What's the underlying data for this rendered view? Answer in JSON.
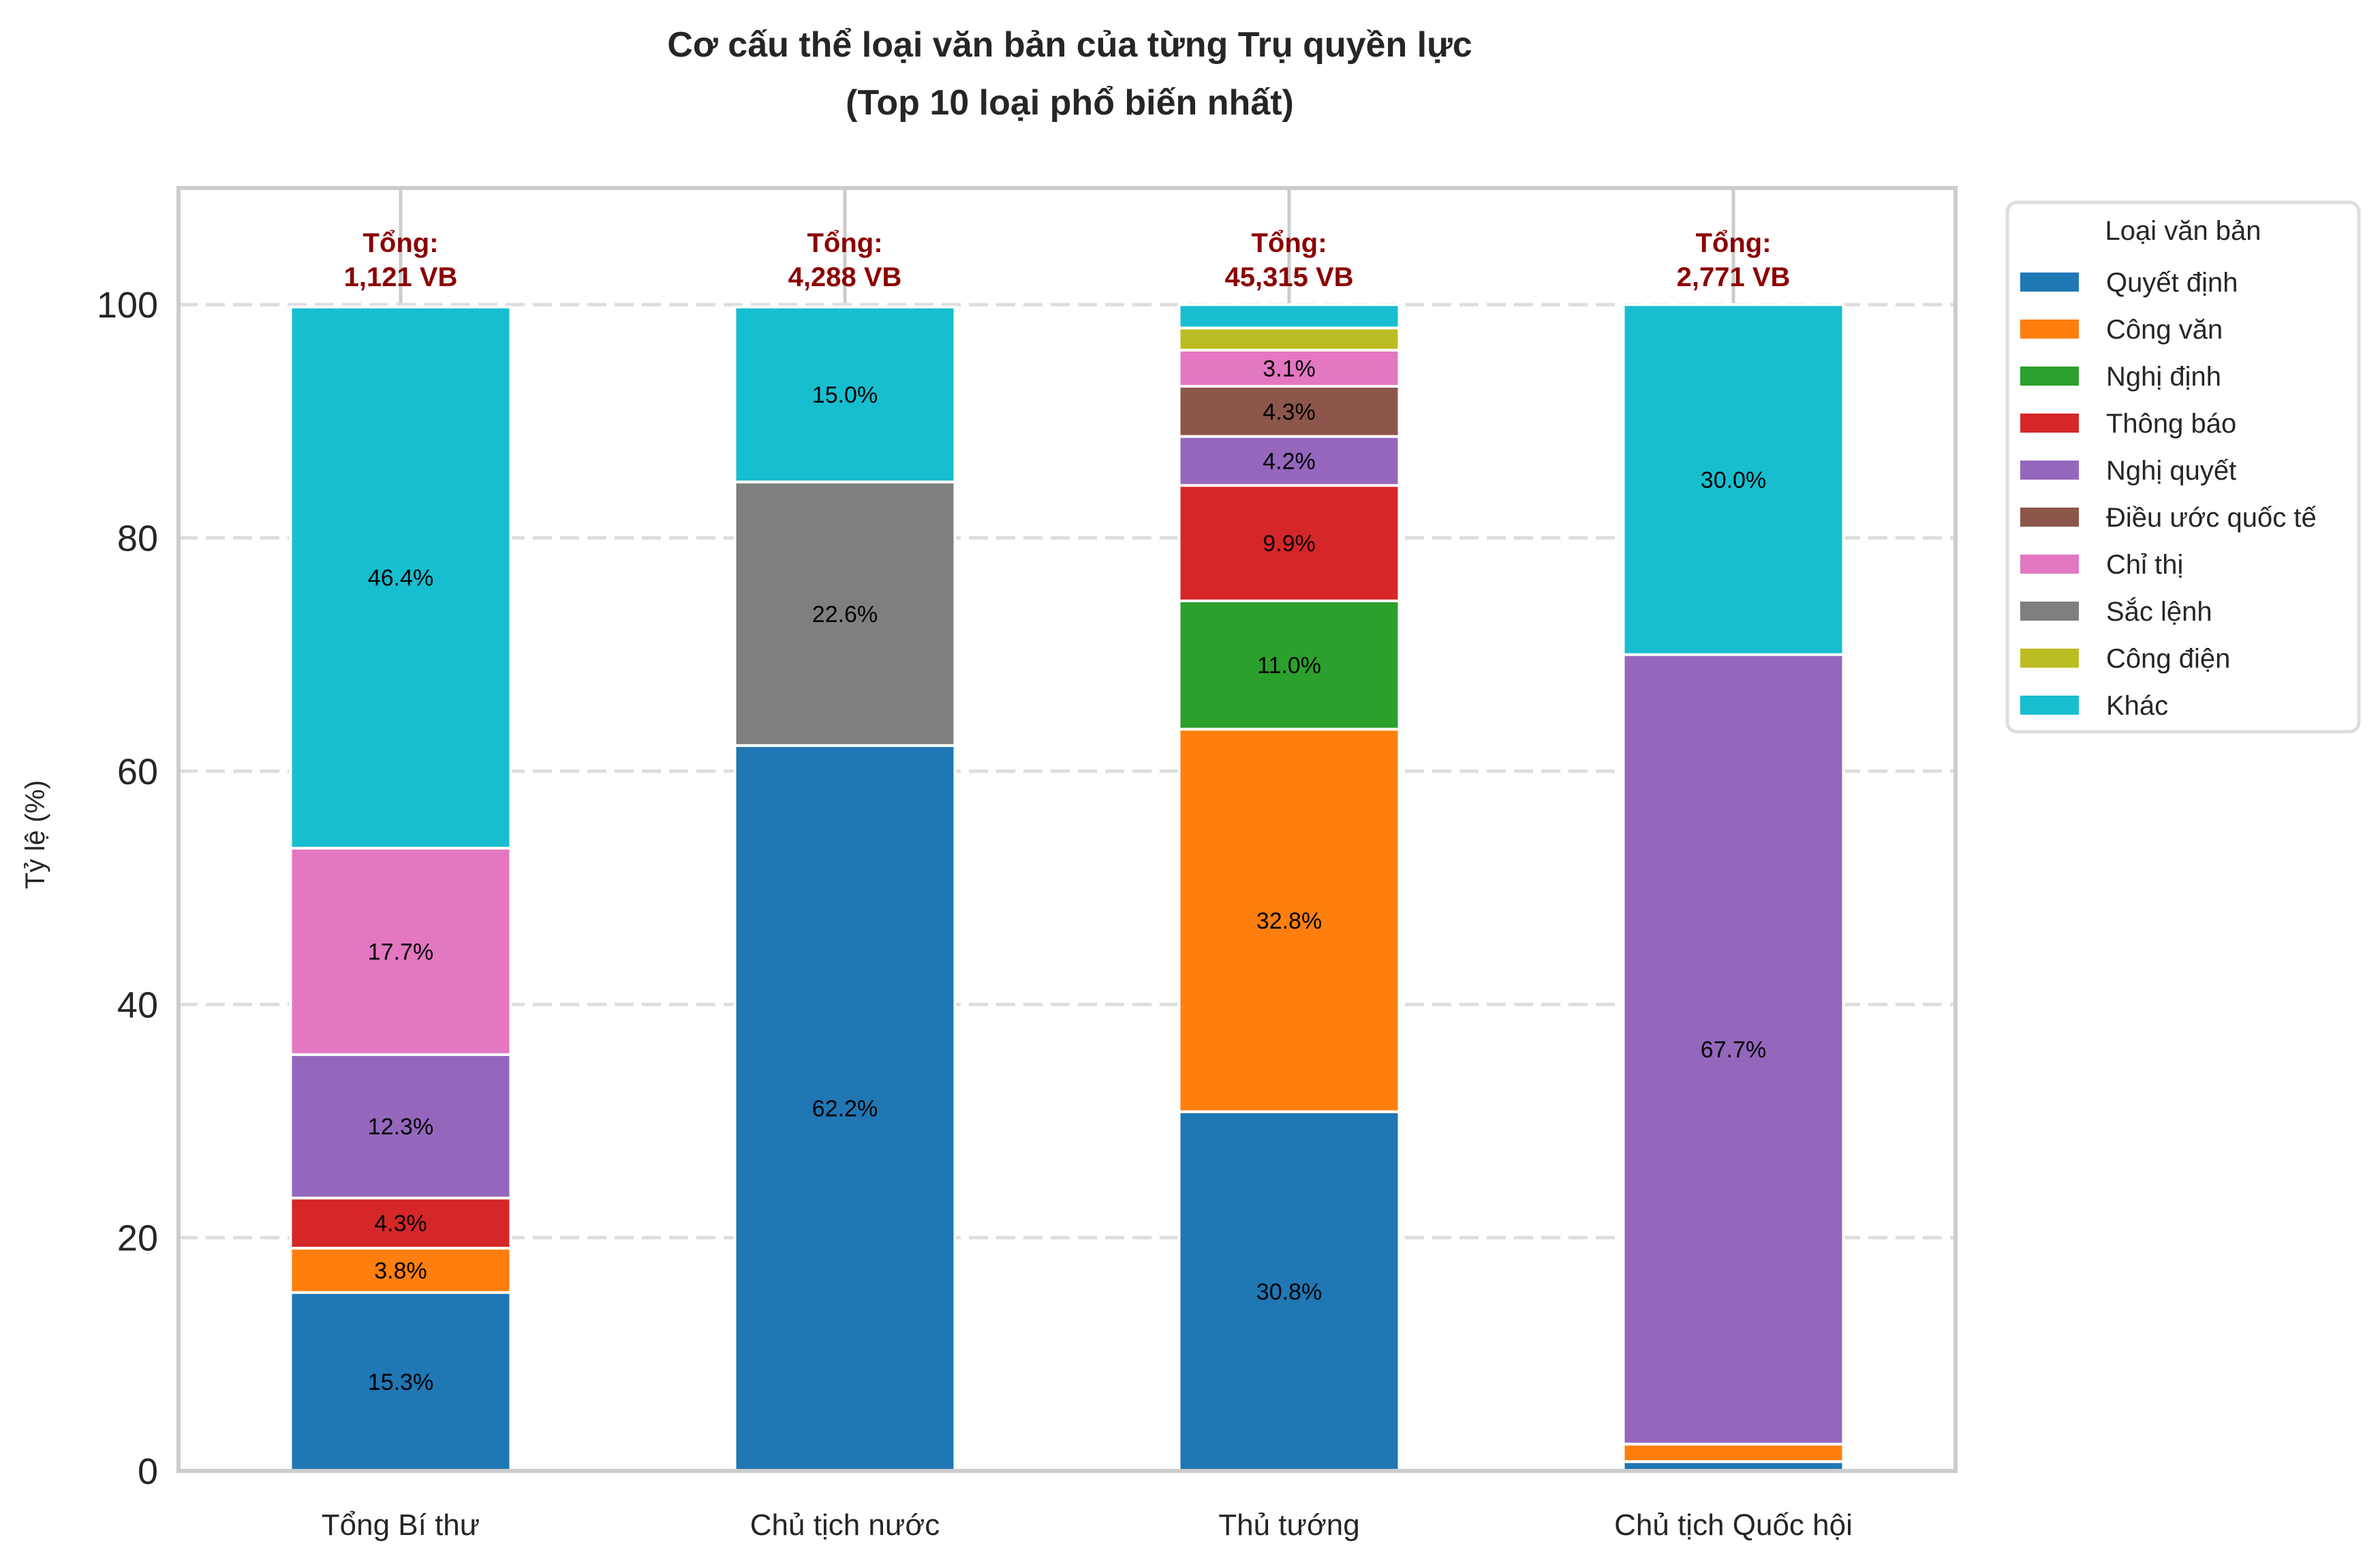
{
  "chart_data": {
    "type": "bar",
    "stacked": true,
    "title": "Cơ cấu thể loại văn bản của từng Trụ quyền lực",
    "subtitle": "(Top 10 loại phổ biến nhất)",
    "xlabel": "",
    "ylabel": "Tỷ lệ (%)",
    "ylim": [
      0,
      110
    ],
    "yticks": [
      0,
      20,
      40,
      60,
      80,
      100
    ],
    "grid": true,
    "legend_title": "Loại văn bản",
    "legend_placement": "outside-right-top",
    "categories": [
      "Tổng Bí thư",
      "Chủ tịch nước",
      "Thủ tướng",
      "Chủ tịch Quốc hội"
    ],
    "totals": [
      "Tổng:\n1,121 VB",
      "Tổng:\n4,288 VB",
      "Tổng:\n45,315 VB",
      "Tổng:\n2,771 VB"
    ],
    "total_label_color": "#8b0000",
    "series": [
      {
        "name": "Quyết định",
        "color": "#1f77b4",
        "values": [
          15.3,
          62.2,
          30.8,
          0.8
        ]
      },
      {
        "name": "Công văn",
        "color": "#ff7f0e",
        "values": [
          3.8,
          0,
          32.8,
          1.5
        ]
      },
      {
        "name": "Nghị định",
        "color": "#2ca02c",
        "values": [
          0,
          0,
          11.0,
          0
        ]
      },
      {
        "name": "Thông báo",
        "color": "#d62728",
        "values": [
          4.3,
          0,
          9.9,
          0
        ]
      },
      {
        "name": "Nghị quyết",
        "color": "#9467bd",
        "values": [
          12.3,
          0,
          4.2,
          67.7
        ]
      },
      {
        "name": "Điều ước quốc tế",
        "color": "#8c564b",
        "values": [
          0,
          0,
          4.3,
          0
        ]
      },
      {
        "name": "Chỉ thị",
        "color": "#e377c2",
        "values": [
          17.7,
          0,
          3.1,
          0
        ]
      },
      {
        "name": "Sắc lệnh",
        "color": "#7f7f7f",
        "values": [
          0,
          22.6,
          0,
          0
        ]
      },
      {
        "name": "Công điện",
        "color": "#bcbd22",
        "values": [
          0,
          0,
          1.9,
          0
        ]
      },
      {
        "name": "Khác",
        "color": "#17becf",
        "values": [
          46.4,
          15.0,
          2.0,
          30.0
        ]
      }
    ]
  }
}
